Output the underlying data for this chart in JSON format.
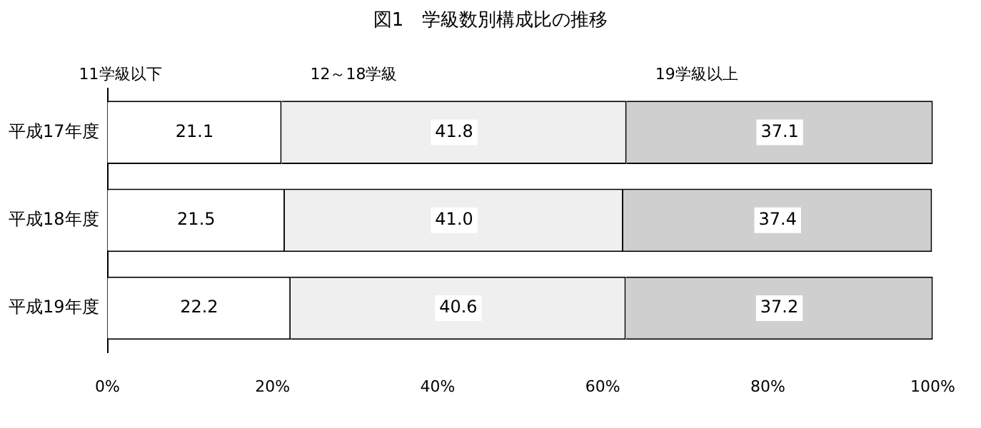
{
  "chart_data": {
    "type": "bar",
    "title": "図1　学級数別構成比の推移",
    "orientation": "horizontal",
    "stacked": true,
    "categories": [
      "平成17年度",
      "平成18年度",
      "平成19年度"
    ],
    "series": [
      {
        "name": "11学級以下",
        "color": "#ffffff",
        "values": [
          21.1,
          21.5,
          22.2
        ],
        "value_labels": [
          "21.1",
          "21.5",
          "22.2"
        ]
      },
      {
        "name": "12～18学級",
        "color": "#efefef",
        "values": [
          41.8,
          41.0,
          40.6
        ],
        "value_labels": [
          "41.8",
          "41.0",
          "40.6"
        ]
      },
      {
        "name": "19学級以上",
        "color": "#cfcfcf",
        "values": [
          37.1,
          37.4,
          37.2
        ],
        "value_labels": [
          "37.1",
          "37.4",
          "37.2"
        ]
      }
    ],
    "xlim": [
      0,
      100
    ],
    "xticks": [
      {
        "value": 0,
        "label": "0%"
      },
      {
        "value": 20,
        "label": "20%"
      },
      {
        "value": 40,
        "label": "40%"
      },
      {
        "value": 60,
        "label": "60%"
      },
      {
        "value": 80,
        "label": "80%"
      },
      {
        "value": 100,
        "label": "100%"
      }
    ],
    "grid": false,
    "legend": false
  }
}
